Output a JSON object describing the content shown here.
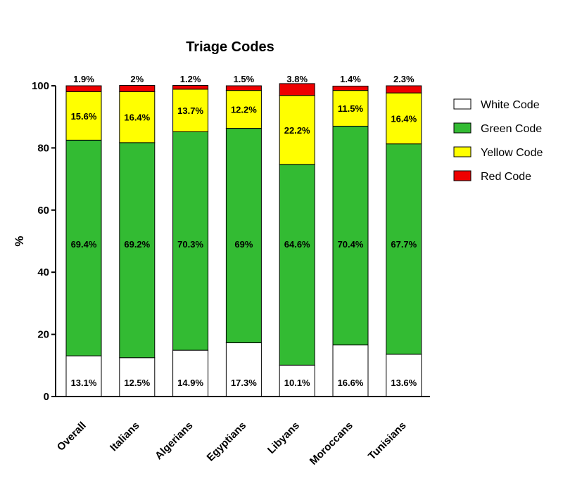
{
  "chart_data": {
    "type": "bar",
    "stacked": true,
    "title": "Triage Codes",
    "xlabel": "",
    "ylabel": "%",
    "ylim": [
      0,
      100
    ],
    "yticks": [
      0,
      20,
      40,
      60,
      80,
      100
    ],
    "grid": false,
    "legend_position": "right",
    "categories": [
      "Overall",
      "Italians",
      "Algerians",
      "Egyptians",
      "Libyans",
      "Moroccans",
      "Tunisians"
    ],
    "series": [
      {
        "name": "White Code",
        "color": "#ffffff",
        "values": [
          13.1,
          12.5,
          14.9,
          17.3,
          10.1,
          16.6,
          13.6
        ],
        "labels": [
          "13.1%",
          "12.5%",
          "14.9%",
          "17.3%",
          "10.1%",
          "16.6%",
          "13.6%"
        ]
      },
      {
        "name": "Green Code",
        "color": "#33bb33",
        "values": [
          69.4,
          69.2,
          70.3,
          69,
          64.6,
          70.4,
          67.7
        ],
        "labels": [
          "69.4%",
          "69.2%",
          "70.3%",
          "69%",
          "64.6%",
          "70.4%",
          "67.7%"
        ]
      },
      {
        "name": "Yellow Code",
        "color": "#ffff00",
        "values": [
          15.6,
          16.4,
          13.7,
          12.2,
          22.2,
          11.5,
          16.4
        ],
        "labels": [
          "15.6%",
          "16.4%",
          "13.7%",
          "12.2%",
          "22.2%",
          "11.5%",
          "16.4%"
        ]
      },
      {
        "name": "Red Code",
        "color": "#ee0000",
        "values": [
          1.9,
          2,
          1.2,
          1.5,
          3.8,
          1.4,
          2.3
        ],
        "labels": [
          "1.9%",
          "2%",
          "1.2%",
          "1.5%",
          "3.8%",
          "1.4%",
          "2.3%"
        ]
      }
    ]
  }
}
